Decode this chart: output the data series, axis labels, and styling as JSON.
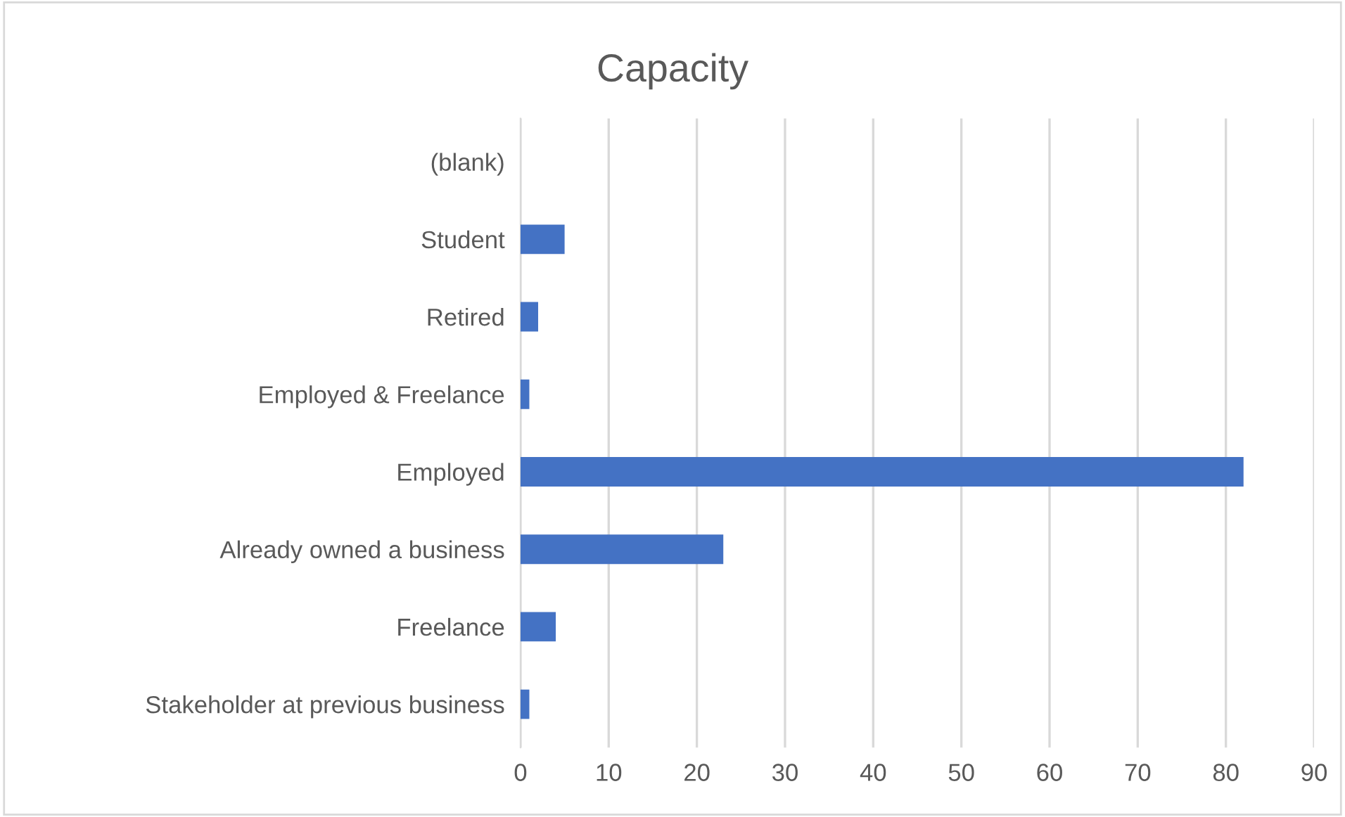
{
  "chart_data": {
    "type": "bar",
    "orientation": "horizontal",
    "title": "Capacity",
    "categories": [
      "(blank)",
      "Student",
      "Retired",
      "Employed & Freelance",
      "Employed",
      "Already owned a business",
      "Freelance",
      "Stakeholder at previous business"
    ],
    "values": [
      0,
      5,
      2,
      1,
      82,
      23,
      4,
      1
    ],
    "color": "#4472c4",
    "xlim": [
      0,
      90
    ],
    "xticks": [
      0,
      10,
      20,
      30,
      40,
      50,
      60,
      70,
      80,
      90
    ],
    "grid": "x",
    "legend": false
  }
}
